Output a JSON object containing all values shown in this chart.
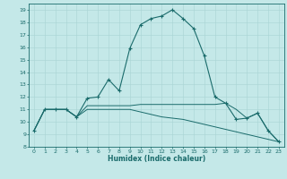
{
  "xlabel": "Humidex (Indice chaleur)",
  "bg_color": "#c4e8e8",
  "line_color": "#1a6b6b",
  "grid_color": "#a8d4d4",
  "xlim": [
    -0.5,
    23.5
  ],
  "ylim": [
    8,
    19.5
  ],
  "yticks": [
    8,
    9,
    10,
    11,
    12,
    13,
    14,
    15,
    16,
    17,
    18,
    19
  ],
  "xticks": [
    0,
    1,
    2,
    3,
    4,
    5,
    6,
    7,
    8,
    9,
    10,
    11,
    12,
    13,
    14,
    15,
    16,
    17,
    18,
    19,
    20,
    21,
    22,
    23
  ],
  "curve1_x": [
    0,
    1,
    2,
    3,
    4,
    5,
    6,
    7,
    8,
    9,
    10,
    11,
    12,
    13,
    14,
    15,
    16,
    17,
    18,
    19,
    20,
    21,
    22,
    23
  ],
  "curve1_y": [
    9.3,
    11.0,
    11.0,
    11.0,
    10.4,
    11.9,
    12.0,
    13.4,
    12.5,
    15.9,
    17.8,
    18.3,
    18.5,
    19.0,
    18.3,
    17.5,
    15.3,
    12.0,
    11.5,
    10.2,
    10.3,
    10.7,
    9.3,
    8.4
  ],
  "curve2_x": [
    0,
    1,
    2,
    3,
    4,
    5,
    6,
    7,
    8,
    9,
    10,
    11,
    12,
    13,
    14,
    15,
    16,
    17,
    18,
    19,
    20,
    21,
    22,
    23
  ],
  "curve2_y": [
    9.3,
    11.0,
    11.0,
    11.0,
    10.4,
    11.3,
    11.3,
    11.3,
    11.3,
    11.3,
    11.4,
    11.4,
    11.4,
    11.4,
    11.4,
    11.4,
    11.4,
    11.4,
    11.5,
    11.0,
    10.3,
    10.7,
    9.3,
    8.4
  ],
  "curve3_x": [
    0,
    1,
    2,
    3,
    4,
    5,
    6,
    7,
    8,
    9,
    10,
    11,
    12,
    13,
    14,
    15,
    16,
    17,
    18,
    19,
    20,
    21,
    22,
    23
  ],
  "curve3_y": [
    9.3,
    11.0,
    11.0,
    11.0,
    10.4,
    11.0,
    11.0,
    11.0,
    11.0,
    11.0,
    10.8,
    10.6,
    10.4,
    10.3,
    10.2,
    10.0,
    9.8,
    9.6,
    9.4,
    9.2,
    9.0,
    8.8,
    8.6,
    8.4
  ]
}
